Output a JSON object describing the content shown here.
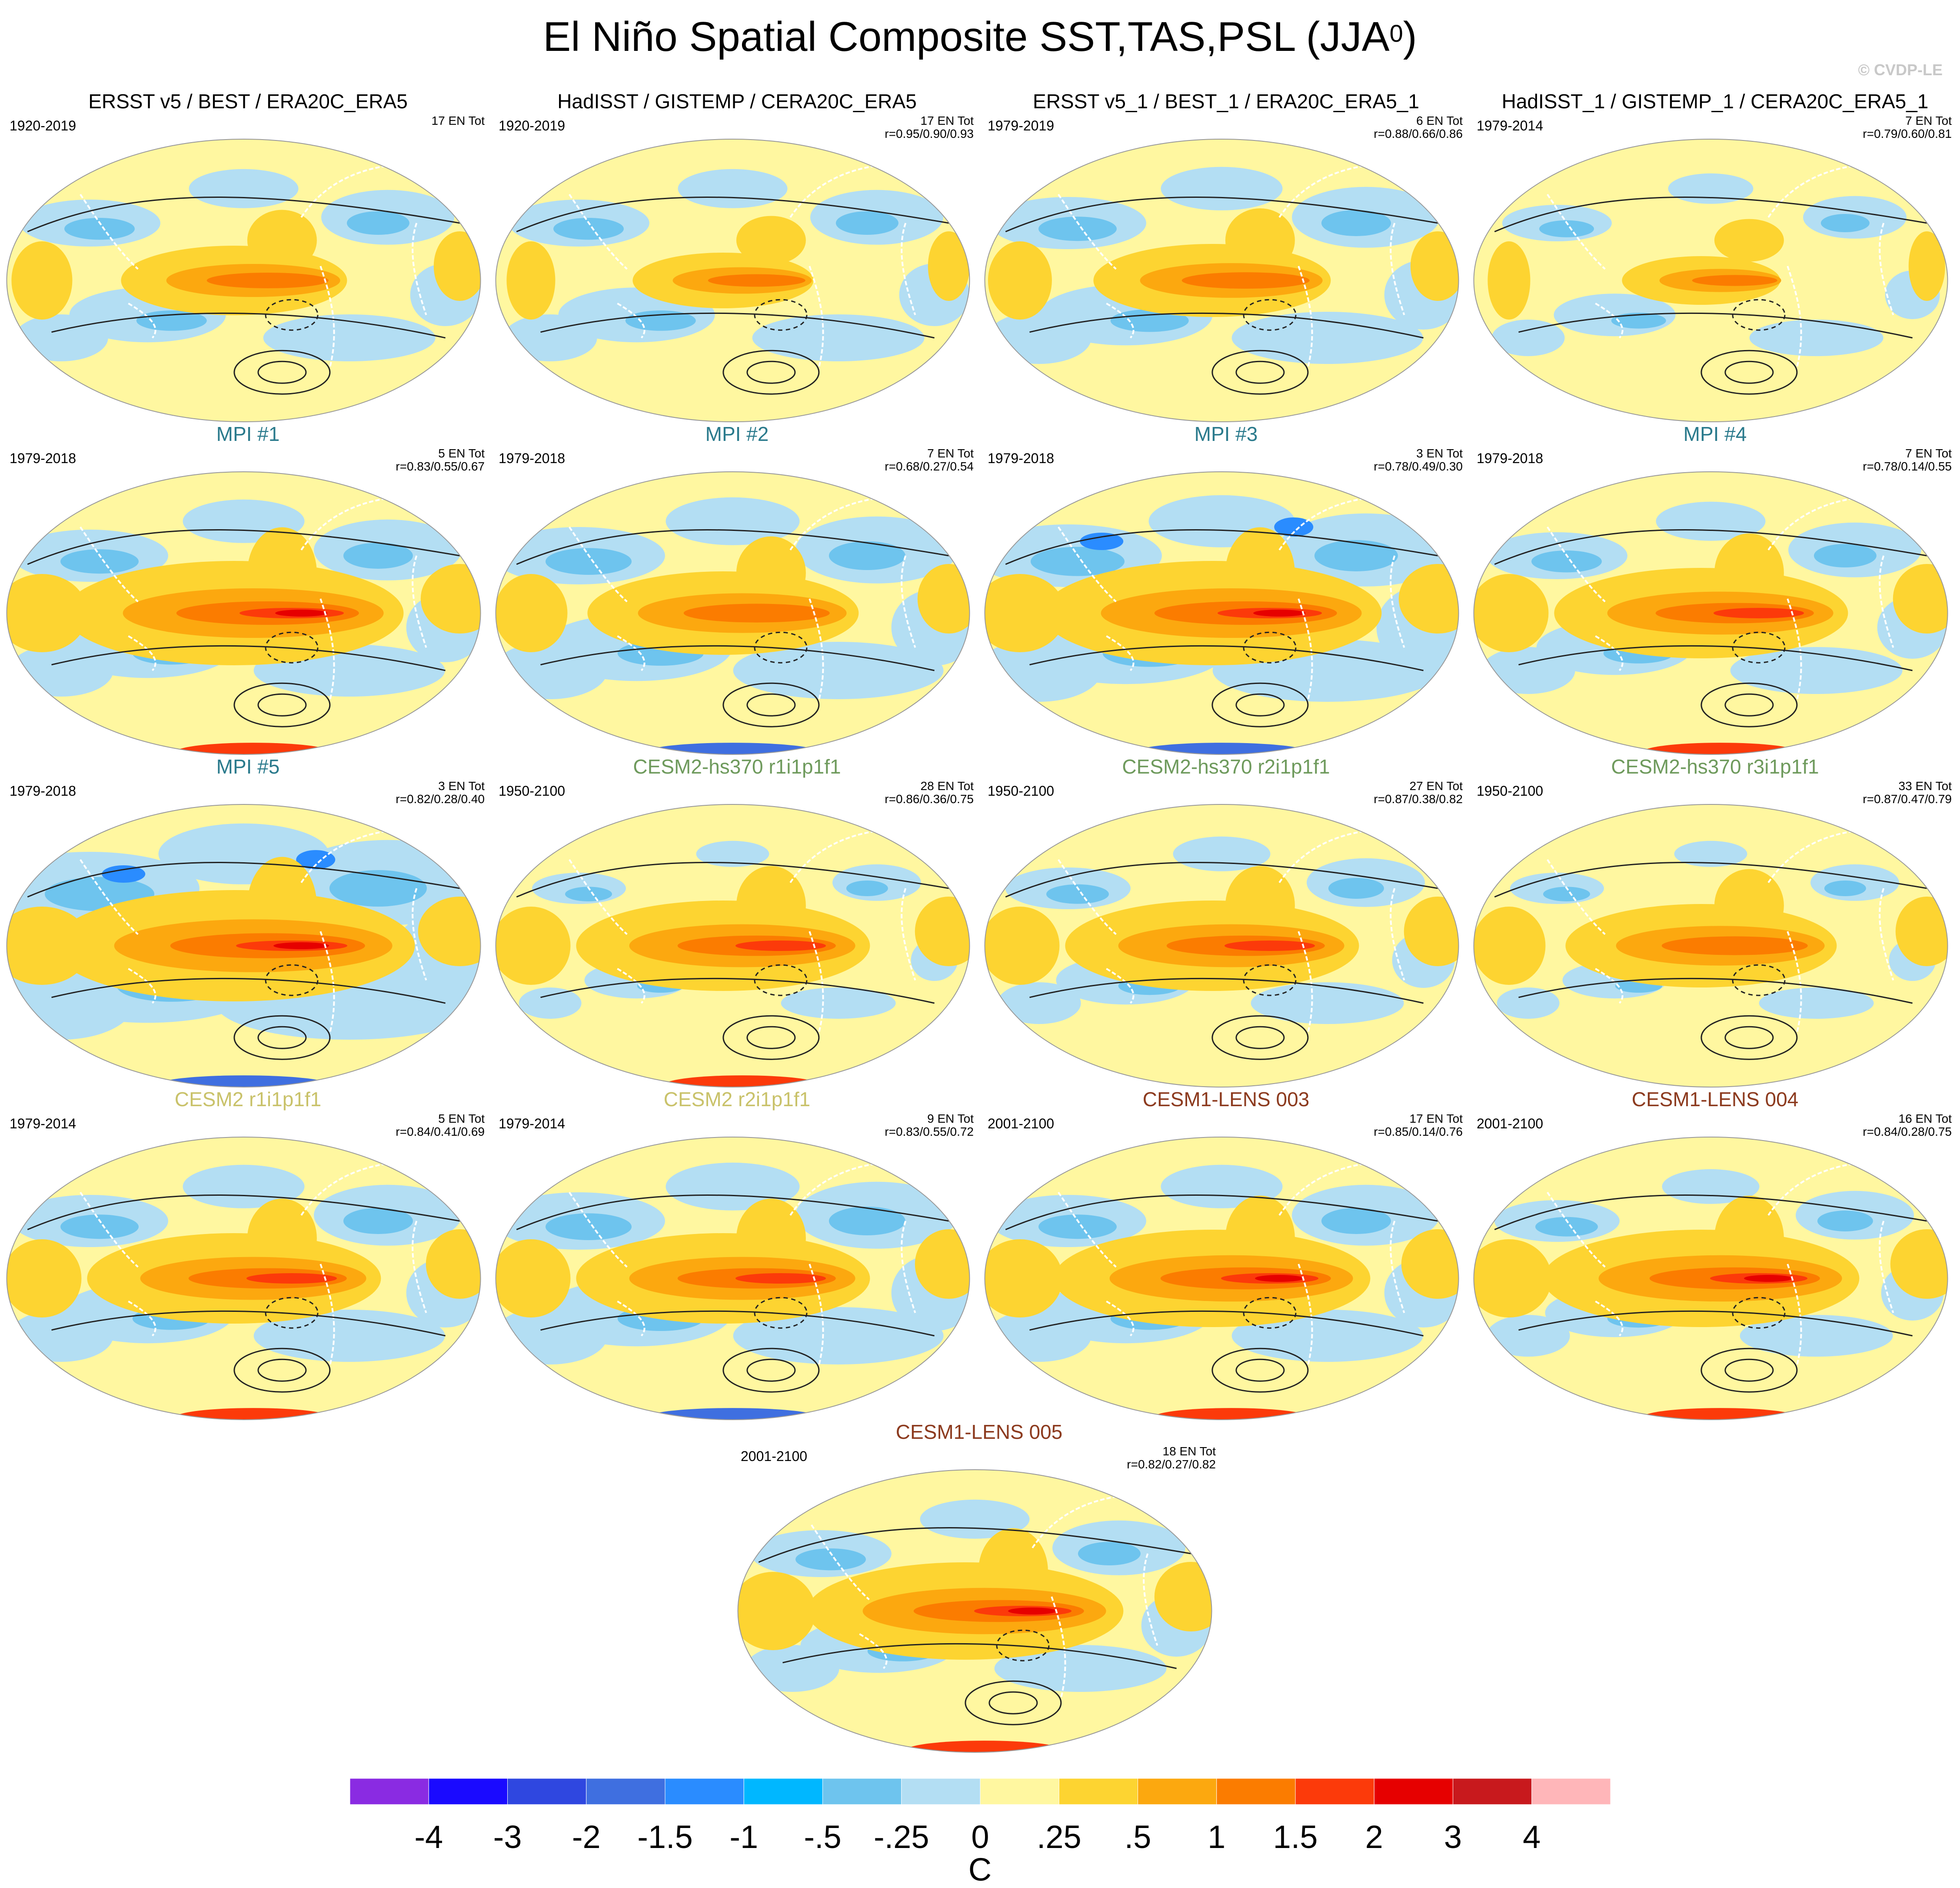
{
  "title": {
    "main": "El Niño Spatial Composite SST,TAS,PSL (JJA",
    "superscript": "0",
    "close": ")"
  },
  "watermark": "© CVDP-LE",
  "panels": [
    {
      "title": "ERSST v5 / BEST / ERA20C_ERA5",
      "period": "1920-2019",
      "events": "17 EN Tot",
      "corr": "",
      "color": "#000000",
      "warmth": 1.0,
      "cold": 0.9,
      "south": "none"
    },
    {
      "title": "HadISST / GISTEMP / CERA20C_ERA5",
      "period": "1920-2019",
      "events": "17 EN Tot",
      "corr": "r=0.95/0.90/0.93",
      "color": "#000000",
      "warmth": 0.8,
      "cold": 0.9,
      "south": "none"
    },
    {
      "title": "ERSST v5_1 / BEST_1 / ERA20C_ERA5_1",
      "period": "1979-2019",
      "events": "6 EN Tot",
      "corr": "r=0.88/0.66/0.86",
      "color": "#000000",
      "warmth": 1.05,
      "cold": 1.0,
      "south": "none"
    },
    {
      "title": "HadISST_1 / GISTEMP_1 / CERA20C_ERA5_1",
      "period": "1979-2014",
      "events": "7 EN Tot",
      "corr": "r=0.79/0.60/0.81",
      "color": "#000000",
      "warmth": 0.7,
      "cold": 0.7,
      "south": "none"
    },
    {
      "title": "MPI #1",
      "period": "1979-2018",
      "events": "5 EN Tot",
      "corr": "r=0.83/0.55/0.67",
      "color": "#2a7a8c",
      "warmth": 1.5,
      "cold": 1.0,
      "south": "warm"
    },
    {
      "title": "MPI #2",
      "period": "1979-2018",
      "events": "7 EN Tot",
      "corr": "r=0.68/0.27/0.54",
      "color": "#2a7a8c",
      "warmth": 1.2,
      "cold": 1.1,
      "south": "cold"
    },
    {
      "title": "MPI #3",
      "period": "1979-2018",
      "events": "3 EN Tot",
      "corr": "r=0.78/0.49/0.30",
      "color": "#2a7a8c",
      "warmth": 1.5,
      "cold": 1.2,
      "south": "cold"
    },
    {
      "title": "MPI #4",
      "period": "1979-2018",
      "events": "7 EN Tot",
      "corr": "r=0.78/0.14/0.55",
      "color": "#2a7a8c",
      "warmth": 1.3,
      "cold": 0.9,
      "south": "warm"
    },
    {
      "title": "MPI #5",
      "period": "1979-2018",
      "events": "3 EN Tot",
      "corr": "r=0.82/0.28/0.40",
      "color": "#2a7a8c",
      "warmth": 1.6,
      "cold": 1.4,
      "south": "cold"
    },
    {
      "title": "CESM2-hs370 r1i1p1f1",
      "period": "1950-2100",
      "events": "28 EN Tot",
      "corr": "r=0.86/0.36/0.75",
      "color": "#6e9a5c",
      "warmth": 1.3,
      "cold": 0.6,
      "south": "warm"
    },
    {
      "title": "CESM2-hs370 r2i1p1f1",
      "period": "1950-2100",
      "events": "27 EN Tot",
      "corr": "r=0.87/0.38/0.82",
      "color": "#6e9a5c",
      "warmth": 1.3,
      "cold": 0.8,
      "south": "none"
    },
    {
      "title": "CESM2-hs370 r3i1p1f1",
      "period": "1950-2100",
      "events": "33 EN Tot",
      "corr": "r=0.87/0.47/0.79",
      "color": "#6e9a5c",
      "warmth": 1.2,
      "cold": 0.6,
      "south": "none"
    },
    {
      "title": "CESM2 r1i1p1f1",
      "period": "1979-2014",
      "events": "5 EN Tot",
      "corr": "r=0.84/0.41/0.69",
      "color": "#c9c26a",
      "warmth": 1.3,
      "cold": 1.0,
      "south": "warm"
    },
    {
      "title": "CESM2 r2i1p1f1",
      "period": "1979-2014",
      "events": "9 EN Tot",
      "corr": "r=0.83/0.55/0.72",
      "color": "#c9c26a",
      "warmth": 1.3,
      "cold": 1.1,
      "south": "cold"
    },
    {
      "title": "CESM1-LENS 003",
      "period": "2001-2100",
      "events": "17 EN Tot",
      "corr": "r=0.85/0.14/0.76",
      "color": "#8c3a1e",
      "warmth": 1.4,
      "cold": 1.0,
      "south": "warm"
    },
    {
      "title": "CESM1-LENS 004",
      "period": "2001-2100",
      "events": "16 EN Tot",
      "corr": "r=0.84/0.28/0.75",
      "color": "#8c3a1e",
      "warmth": 1.4,
      "cold": 0.8,
      "south": "warm"
    },
    {
      "title": "CESM1-LENS 005",
      "period": "2001-2100",
      "events": "18 EN Tot",
      "corr": "r=0.82/0.27/0.82",
      "color": "#8c3a1e",
      "warmth": 1.4,
      "cold": 0.9,
      "south": "warm"
    }
  ],
  "colorbar": {
    "colors": [
      "#8a2be2",
      "#1a0aff",
      "#2f47e0",
      "#3f6fe0",
      "#2a8cff",
      "#00b7ff",
      "#6ec4ee",
      "#b3def3",
      "#fff7a0",
      "#fdd431",
      "#fca80f",
      "#fb7c00",
      "#fc3a0a",
      "#e60000",
      "#c8191d",
      "#ffb6b9"
    ],
    "labels": [
      "-4",
      "-3",
      "-2",
      "-1.5",
      "-1",
      "-.5",
      "-.25",
      "0",
      ".25",
      ".5",
      "1",
      "1.5",
      "2",
      "3",
      "4"
    ],
    "units": "C"
  }
}
